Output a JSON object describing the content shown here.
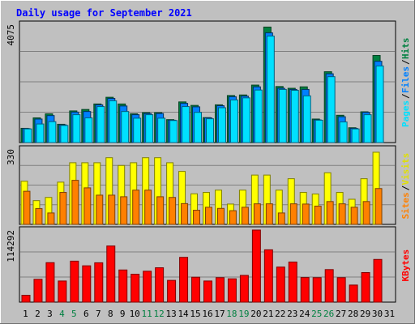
{
  "title": "Daily usage for September 2021",
  "colors": {
    "background": "#c0c0c0",
    "title": "#0000ff",
    "hits": "#008040",
    "files": "#0080ff",
    "pages": "#00e0ff",
    "visits": "#ffff00",
    "sites": "#ff8000",
    "kbytes": "#ff0000",
    "weekend_label": "#008040",
    "weekday_label": "#000000"
  },
  "chart_data": [
    {
      "type": "bar",
      "panel": "hits-files-pages",
      "ymax_label": "4075",
      "ylim": [
        0,
        4075
      ],
      "categories": [
        "1",
        "2",
        "3",
        "4",
        "5",
        "6",
        "7",
        "8",
        "9",
        "10",
        "11",
        "12",
        "13",
        "14",
        "15",
        "16",
        "17",
        "18",
        "19",
        "20",
        "21",
        "22",
        "23",
        "24",
        "25",
        "26",
        "27",
        "28",
        "29",
        "30",
        "31"
      ],
      "weekend_days": [
        "4",
        "5",
        "11",
        "12",
        "18",
        "19",
        "25",
        "26"
      ],
      "series": [
        {
          "name": "Hits",
          "values": [
            490,
            850,
            990,
            630,
            1090,
            1140,
            1330,
            1560,
            1330,
            990,
            1030,
            1030,
            790,
            1400,
            1280,
            860,
            1300,
            1620,
            1640,
            1980,
            3980,
            1930,
            1870,
            1920,
            810,
            2440,
            940,
            510,
            1060,
            3000,
            0
          ]
        },
        {
          "name": "Files",
          "values": [
            480,
            810,
            930,
            610,
            1050,
            1070,
            1300,
            1520,
            1260,
            960,
            1000,
            1000,
            770,
            1350,
            1230,
            850,
            1270,
            1580,
            1600,
            1920,
            3780,
            1870,
            1830,
            1830,
            780,
            2370,
            890,
            490,
            1040,
            2800,
            0
          ]
        },
        {
          "name": "Pages",
          "values": [
            470,
            640,
            720,
            590,
            960,
            850,
            1240,
            1440,
            1070,
            840,
            960,
            840,
            760,
            1240,
            1040,
            820,
            1200,
            1470,
            1540,
            1810,
            3670,
            1830,
            1800,
            1610,
            770,
            2270,
            710,
            470,
            960,
            2640,
            0
          ]
        }
      ],
      "legend_labels": [
        "Pages",
        "Files",
        "Hits"
      ]
    },
    {
      "type": "bar",
      "panel": "visits-sites",
      "ymax_label": "330",
      "ylim": [
        0,
        330
      ],
      "categories": [
        "1",
        "2",
        "3",
        "4",
        "5",
        "6",
        "7",
        "8",
        "9",
        "10",
        "11",
        "12",
        "13",
        "14",
        "15",
        "16",
        "17",
        "18",
        "19",
        "20",
        "21",
        "22",
        "23",
        "24",
        "25",
        "26",
        "27",
        "28",
        "29",
        "30",
        "31"
      ],
      "series": [
        {
          "name": "Visits",
          "values": [
            189,
            104,
            118,
            185,
            270,
            270,
            270,
            292,
            258,
            270,
            292,
            292,
            270,
            232,
            134,
            140,
            150,
            89,
            150,
            216,
            216,
            150,
            200,
            140,
            133,
            226,
            140,
            110,
            200,
            316,
            0
          ]
        },
        {
          "name": "Sites",
          "values": [
            145,
            69,
            50,
            140,
            193,
            160,
            128,
            128,
            121,
            150,
            150,
            121,
            118,
            91,
            62,
            75,
            70,
            60,
            75,
            90,
            90,
            50,
            90,
            89,
            80,
            100,
            90,
            75,
            100,
            157,
            0
          ]
        }
      ],
      "legend_labels": [
        "Sites",
        "Visits"
      ]
    },
    {
      "type": "bar",
      "panel": "kbytes",
      "ymax_label": "114292",
      "ylim": [
        0,
        114292
      ],
      "categories": [
        "1",
        "2",
        "3",
        "4",
        "5",
        "6",
        "7",
        "8",
        "9",
        "10",
        "11",
        "12",
        "13",
        "14",
        "15",
        "16",
        "17",
        "18",
        "19",
        "20",
        "21",
        "22",
        "23",
        "24",
        "25",
        "26",
        "27",
        "28",
        "29",
        "30",
        "31"
      ],
      "series": [
        {
          "name": "KBytes",
          "values": [
            10900,
            36200,
            62600,
            33500,
            65000,
            57600,
            62400,
            89000,
            51000,
            44300,
            49000,
            54500,
            34500,
            71000,
            39500,
            33500,
            38800,
            37000,
            42400,
            114292,
            83000,
            55600,
            63600,
            39000,
            38800,
            51600,
            38800,
            27100,
            46900,
            67700,
            0
          ]
        }
      ],
      "legend_labels": [
        "KBytes"
      ]
    }
  ]
}
